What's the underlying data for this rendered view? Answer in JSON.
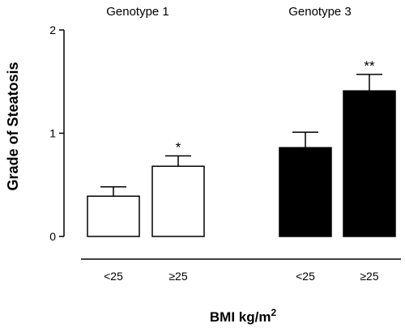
{
  "chart_data": {
    "type": "bar",
    "ylabel": "Grade of Steatosis",
    "xlabel": "BMI kg/m",
    "xlabel_superscript": "2",
    "ylim": [
      0,
      2
    ],
    "yticks": [
      "0",
      "1",
      "2"
    ],
    "groups": [
      {
        "name": "Genotype 1",
        "fill": "#ffffff",
        "bars": [
          {
            "category": "<25",
            "value": 0.39,
            "error": 0.09,
            "significance": ""
          },
          {
            "category": "≥25",
            "value": 0.68,
            "error": 0.1,
            "significance": "*"
          }
        ]
      },
      {
        "name": "Genotype 3",
        "fill": "#000000",
        "bars": [
          {
            "category": "<25",
            "value": 0.86,
            "error": 0.15,
            "significance": ""
          },
          {
            "category": "≥25",
            "value": 1.41,
            "error": 0.16,
            "significance": "**"
          }
        ]
      }
    ]
  }
}
